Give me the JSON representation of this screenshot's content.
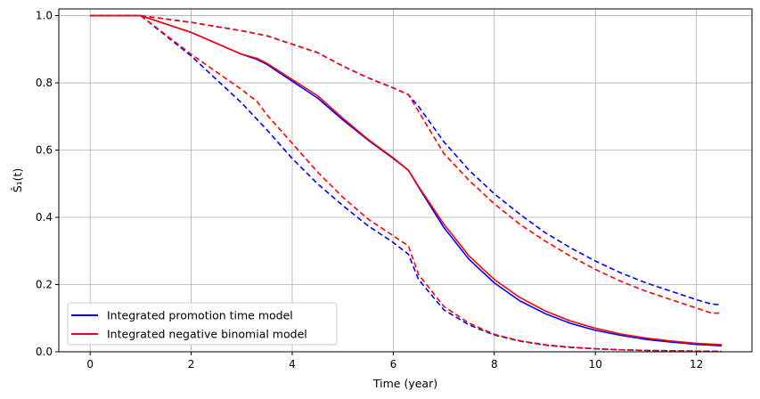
{
  "chart_data": {
    "type": "line",
    "title": "",
    "xlabel": "Time (year)",
    "ylabel": "Ŝ₁(t)",
    "xlim": [
      -0.62,
      13.1
    ],
    "ylim": [
      0.0,
      1.02
    ],
    "xticks": [
      0,
      2,
      4,
      6,
      8,
      10,
      12
    ],
    "yticks": [
      0.0,
      0.2,
      0.4,
      0.6,
      0.8,
      1.0
    ],
    "xtick_labels": [
      "0",
      "2",
      "4",
      "6",
      "8",
      "10",
      "12"
    ],
    "ytick_labels": [
      "0.0",
      "0.2",
      "0.4",
      "0.6",
      "0.8",
      "1.0"
    ],
    "grid": true,
    "legend_position": "lower-left",
    "legend": [
      {
        "label": "Integrated promotion time model",
        "color": "#0000ff"
      },
      {
        "label": "Integrated negative binomial model",
        "color": "#ff0000"
      }
    ],
    "series": [
      {
        "name": "Integrated promotion time model",
        "style": "solid",
        "color": "#0000ff",
        "x": [
          0,
          1,
          2,
          3,
          3.3,
          3.5,
          4,
          4.5,
          5,
          5.5,
          6,
          6.3,
          6.5,
          7,
          7.5,
          8,
          8.5,
          9,
          9.5,
          10,
          10.5,
          11,
          11.5,
          12,
          12.5
        ],
        "y": [
          1.0,
          1.0,
          0.95,
          0.885,
          0.87,
          0.855,
          0.805,
          0.755,
          0.69,
          0.63,
          0.575,
          0.54,
          0.49,
          0.37,
          0.275,
          0.205,
          0.152,
          0.114,
          0.085,
          0.064,
          0.049,
          0.037,
          0.029,
          0.022,
          0.018
        ]
      },
      {
        "name": "",
        "style": "dashed",
        "color": "#0000ff",
        "x": [
          0,
          1,
          2,
          3,
          3.5,
          4,
          4.5,
          5,
          5.5,
          6,
          6.3,
          6.5,
          7,
          7.5,
          8,
          8.5,
          9,
          9.5,
          10,
          10.5,
          11,
          11.5,
          12,
          12.5
        ],
        "y": [
          1.0,
          1.0,
          0.88,
          0.74,
          0.66,
          0.575,
          0.5,
          0.435,
          0.375,
          0.325,
          0.29,
          0.215,
          0.125,
          0.08,
          0.05,
          0.032,
          0.02,
          0.013,
          0.009,
          0.006,
          0.004,
          0.003,
          0.002,
          0.001
        ]
      },
      {
        "name": "",
        "style": "dashed",
        "color": "#0000ff",
        "x": [
          0,
          1,
          2,
          3,
          3.5,
          4,
          4.5,
          5,
          5.5,
          6,
          6.3,
          6.5,
          7,
          7.5,
          8,
          8.5,
          9,
          9.5,
          10,
          10.5,
          11,
          11.5,
          12,
          12.3,
          12.5
        ],
        "y": [
          1.0,
          1.0,
          0.98,
          0.955,
          0.94,
          0.915,
          0.89,
          0.85,
          0.815,
          0.785,
          0.765,
          0.73,
          0.625,
          0.54,
          0.47,
          0.41,
          0.355,
          0.31,
          0.27,
          0.235,
          0.205,
          0.18,
          0.155,
          0.142,
          0.14
        ]
      },
      {
        "name": "Integrated negative binomial model",
        "style": "solid",
        "color": "#ff0000",
        "x": [
          0,
          1,
          2,
          3,
          3.3,
          3.5,
          4,
          4.5,
          5,
          5.5,
          6,
          6.3,
          6.5,
          7,
          7.5,
          8,
          8.5,
          9,
          9.5,
          10,
          10.5,
          11,
          11.5,
          12,
          12.5
        ],
        "y": [
          1.0,
          1.0,
          0.95,
          0.885,
          0.873,
          0.858,
          0.81,
          0.762,
          0.695,
          0.632,
          0.577,
          0.54,
          0.492,
          0.38,
          0.285,
          0.215,
          0.162,
          0.122,
          0.092,
          0.07,
          0.053,
          0.041,
          0.032,
          0.025,
          0.021
        ]
      },
      {
        "name": "",
        "style": "dashed",
        "color": "#ff0000",
        "x": [
          0,
          1,
          2,
          3,
          3.3,
          3.5,
          4,
          4.5,
          5,
          5.5,
          6,
          6.3,
          6.5,
          7,
          7.5,
          8,
          8.5,
          9,
          9.5,
          10,
          10.5,
          11,
          11.5,
          12,
          12.5
        ],
        "y": [
          1.0,
          1.0,
          0.885,
          0.78,
          0.745,
          0.705,
          0.62,
          0.535,
          0.46,
          0.395,
          0.345,
          0.315,
          0.23,
          0.135,
          0.085,
          0.052,
          0.033,
          0.021,
          0.014,
          0.009,
          0.006,
          0.004,
          0.003,
          0.002,
          0.001
        ]
      },
      {
        "name": "",
        "style": "dashed",
        "color": "#ff0000",
        "x": [
          0,
          1,
          2,
          3,
          3.5,
          4,
          4.5,
          5,
          5.5,
          6,
          6.3,
          6.5,
          7,
          7.5,
          8,
          8.5,
          9,
          9.5,
          10,
          10.5,
          11,
          11.5,
          12,
          12.3,
          12.5
        ],
        "y": [
          1.0,
          1.0,
          0.98,
          0.955,
          0.94,
          0.915,
          0.89,
          0.85,
          0.815,
          0.785,
          0.765,
          0.715,
          0.59,
          0.51,
          0.44,
          0.38,
          0.33,
          0.285,
          0.245,
          0.21,
          0.18,
          0.155,
          0.13,
          0.115,
          0.115
        ]
      }
    ]
  }
}
